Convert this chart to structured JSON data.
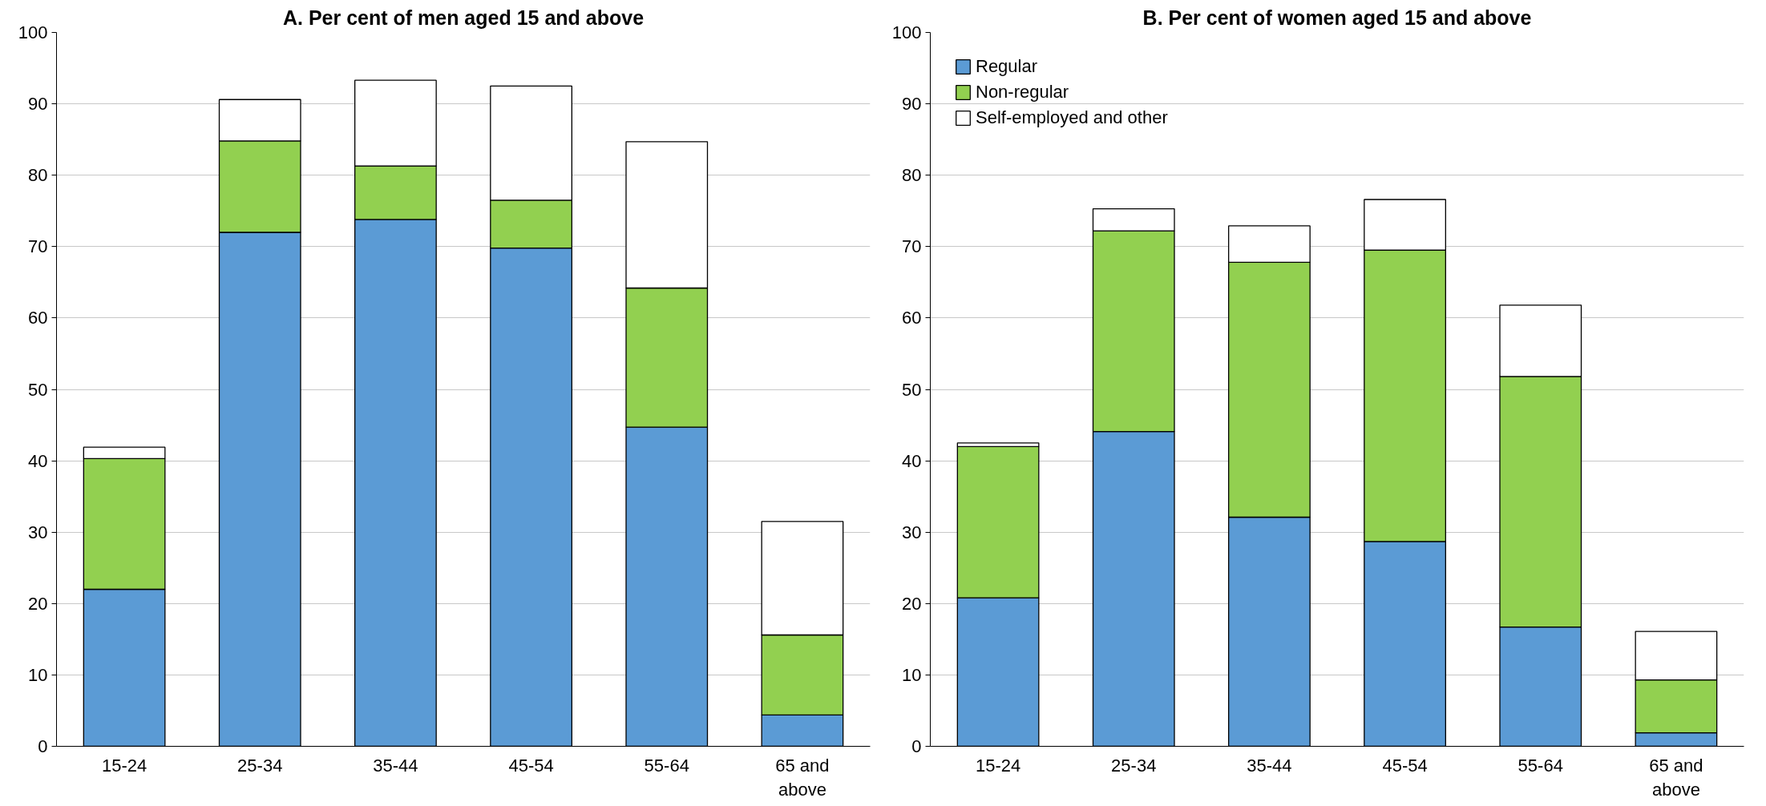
{
  "chart_data": [
    {
      "type": "bar",
      "title": "A. Per cent of men aged 15 and above",
      "stacked": true,
      "categories": [
        "15-24",
        "25-34",
        "35-44",
        "45-54",
        "55-64",
        "65 and above"
      ],
      "ylim": [
        0,
        100
      ],
      "yticks": [
        0,
        10,
        20,
        30,
        40,
        50,
        60,
        70,
        80,
        90,
        100
      ],
      "grid": "y",
      "legend": false,
      "series": [
        {
          "color": "#5b9bd5",
          "values": [
            22,
            72,
            73.8,
            69.8,
            44.7,
            4.4
          ]
        },
        {
          "color": "#92d050",
          "values": [
            18.3,
            12.8,
            7.5,
            6.7,
            19.5,
            11.2
          ]
        },
        {
          "color": "#ffffff",
          "values": [
            1.6,
            5.8,
            12,
            16,
            20.5,
            15.9
          ]
        }
      ]
    },
    {
      "type": "bar",
      "title": "B. Per cent of women aged 15 and above",
      "stacked": true,
      "categories": [
        "15-24",
        "25-34",
        "35-44",
        "45-54",
        "55-64",
        "65 and above"
      ],
      "ylim": [
        0,
        100
      ],
      "yticks": [
        0,
        10,
        20,
        30,
        40,
        50,
        60,
        70,
        80,
        90,
        100
      ],
      "grid": "y",
      "legend": "top left",
      "series": [
        {
          "name": "Regular",
          "color": "#5b9bd5",
          "values": [
            20.8,
            44.1,
            32.1,
            28.7,
            16.7,
            1.9
          ]
        },
        {
          "name": "Non-regular",
          "color": "#92d050",
          "values": [
            21.2,
            28.1,
            35.7,
            40.8,
            35.1,
            7.4
          ]
        },
        {
          "name": "Self-employed and other",
          "color": "#ffffff",
          "values": [
            0.5,
            3.1,
            5.1,
            7.1,
            10,
            6.8
          ]
        }
      ]
    }
  ]
}
